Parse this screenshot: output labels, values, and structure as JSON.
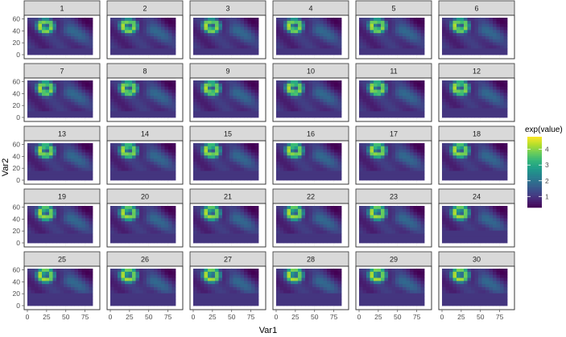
{
  "chart_data": {
    "type": "heatmap",
    "facets": [
      "1",
      "2",
      "3",
      "4",
      "5",
      "6",
      "7",
      "8",
      "9",
      "10",
      "11",
      "12",
      "13",
      "14",
      "15",
      "16",
      "17",
      "18",
      "19",
      "20",
      "21",
      "22",
      "23",
      "24",
      "25",
      "26",
      "27",
      "28",
      "29",
      "30"
    ],
    "xlabel": "Var1",
    "ylabel": "Var2",
    "x_ticks": [
      0,
      25,
      50,
      75
    ],
    "y_ticks": [
      0,
      20,
      40,
      60
    ],
    "xlim": [
      0,
      90
    ],
    "ylim": [
      0,
      65
    ],
    "legend": {
      "title": "exp(value)",
      "ticks": [
        1,
        2,
        3,
        4
      ],
      "range": [
        0.3,
        4.8
      ],
      "placement": "right"
    },
    "colors": {
      "strip_fill": "#d9d9d9",
      "panel_border": "#333333",
      "grid": "#ebebeb",
      "viridis": [
        "#440154",
        "#482878",
        "#3e4989",
        "#31688e",
        "#26828e",
        "#1f9e89",
        "#35b779",
        "#6ece58",
        "#b5de2b",
        "#fde725"
      ]
    }
  }
}
